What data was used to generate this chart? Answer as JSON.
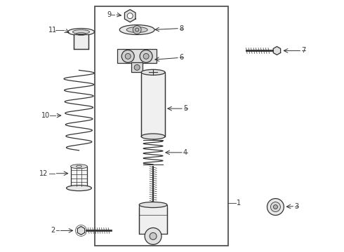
{
  "bg_color": "#ffffff",
  "border_color": "#444444",
  "line_color": "#333333",
  "label_fontsize": 7,
  "fig_width": 4.9,
  "fig_height": 3.6
}
